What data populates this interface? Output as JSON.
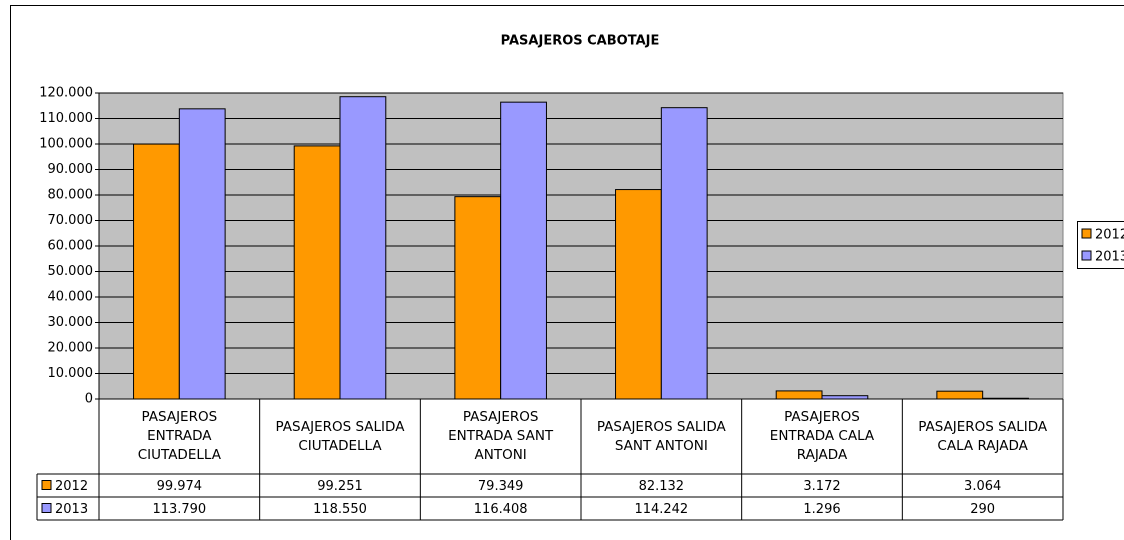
{
  "chart_data": {
    "type": "bar",
    "title": "PASAJEROS CABOTAJE",
    "categories": [
      "PASAJEROS ENTRADA CIUTADELLA",
      "PASAJEROS SALIDA CIUTADELLA",
      "PASAJEROS ENTRADA SANT ANTONI",
      "PASAJEROS SALIDA SANT ANTONI",
      "PASAJEROS ENTRADA CALA RAJADA",
      "PASAJEROS SALIDA CALA RAJADA"
    ],
    "series": [
      {
        "name": "2012",
        "color": "#ff9900",
        "values": [
          99974,
          99251,
          79349,
          82132,
          3172,
          3064
        ],
        "value_labels": [
          "99.974",
          "99.251",
          "79.349",
          "82.132",
          "3.172",
          "3.064"
        ]
      },
      {
        "name": "2013",
        "color": "#9999ff",
        "values": [
          113790,
          118550,
          116408,
          114242,
          1296,
          290
        ],
        "value_labels": [
          "113.790",
          "118.550",
          "116.408",
          "114.242",
          "1.296",
          "290"
        ]
      }
    ],
    "ylim": [
      0,
      120000
    ],
    "yticks": [
      0,
      {
        "value": 10000,
        "label": "10.000"
      },
      {
        "value": 20000,
        "label": "20.000"
      },
      {
        "value": 30000,
        "label": "30.000"
      },
      {
        "value": 40000,
        "label": "40.000"
      },
      {
        "value": 50000,
        "label": "50.000"
      },
      {
        "value": 60000,
        "label": "60.000"
      },
      {
        "value": 70000,
        "label": "70.000"
      },
      {
        "value": 80000,
        "label": "80.000"
      },
      {
        "value": 90000,
        "label": "90.000"
      },
      {
        "value": 100000,
        "label": "100.000"
      },
      {
        "value": 110000,
        "label": "110.000"
      },
      {
        "value": 120000,
        "label": "120.000"
      }
    ],
    "grid": true,
    "legend": "right"
  }
}
